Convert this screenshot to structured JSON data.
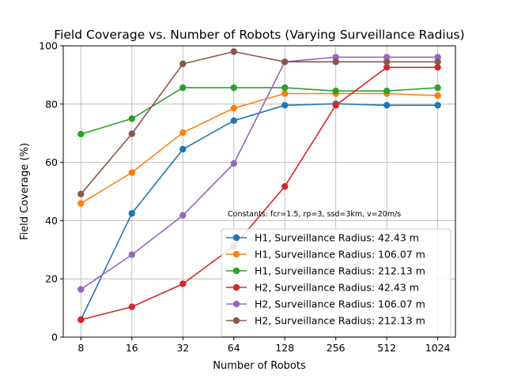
{
  "chart_data": {
    "type": "line",
    "title": "Field Coverage vs. Number of Robots (Varying Surveillance Radius)",
    "xlabel": "Number of Robots",
    "ylabel": "Field Coverage (%)",
    "categories": [
      "8",
      "16",
      "32",
      "64",
      "128",
      "256",
      "512",
      "1024"
    ],
    "ylim": [
      0,
      100
    ],
    "yticks": [
      "0",
      "20",
      "40",
      "60",
      "80",
      "100"
    ],
    "grid": true,
    "legend_position": "lower-right",
    "annotation": "Constants: fcr=1.5, rp=3, ssd=3km, v=20m/s",
    "series": [
      {
        "name": "H1, Surveillance Radius: 42.43 m",
        "color": "#1f77b4",
        "values": [
          6.0,
          42.5,
          64.5,
          74.3,
          79.6,
          80.1,
          79.6,
          79.6
        ]
      },
      {
        "name": "H1, Surveillance Radius: 106.07 m",
        "color": "#ff7f0e",
        "values": [
          45.9,
          56.5,
          70.2,
          78.6,
          83.6,
          83.6,
          83.6,
          82.9
        ]
      },
      {
        "name": "H1, Surveillance Radius: 212.13 m",
        "color": "#2ca02c",
        "values": [
          69.7,
          75.0,
          85.6,
          85.6,
          85.6,
          84.5,
          84.5,
          85.6
        ]
      },
      {
        "name": "H2, Surveillance Radius: 42.43 m",
        "color": "#d62728",
        "values": [
          6.0,
          10.4,
          18.3,
          31.2,
          51.7,
          79.6,
          92.6,
          92.6
        ]
      },
      {
        "name": "H2, Surveillance Radius: 106.07 m",
        "color": "#9467bd",
        "values": [
          16.4,
          28.3,
          41.8,
          59.6,
          94.5,
          96.1,
          96.1,
          96.1
        ]
      },
      {
        "name": "H2, Surveillance Radius: 212.13 m",
        "color": "#8c564b",
        "values": [
          49.1,
          69.8,
          93.8,
          98.0,
          94.5,
          94.5,
          94.5,
          94.5
        ]
      }
    ]
  }
}
